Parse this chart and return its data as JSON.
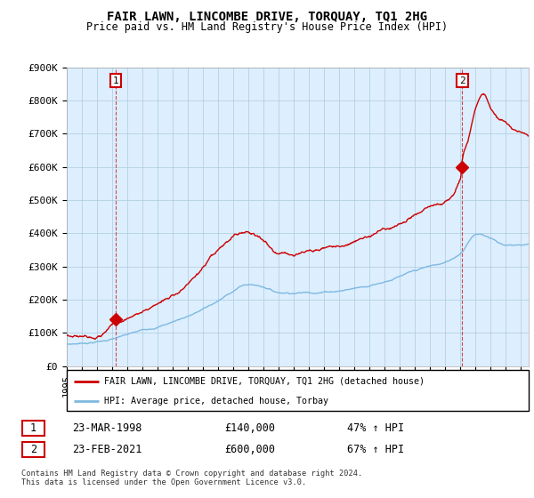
{
  "title": "FAIR LAWN, LINCOMBE DRIVE, TORQUAY, TQ1 2HG",
  "subtitle": "Price paid vs. HM Land Registry's House Price Index (HPI)",
  "ylabel_ticks": [
    "£0",
    "£100K",
    "£200K",
    "£300K",
    "£400K",
    "£500K",
    "£600K",
    "£700K",
    "£800K",
    "£900K"
  ],
  "ylim": [
    0,
    900000
  ],
  "xlim_start": 1995.0,
  "xlim_end": 2025.5,
  "hpi_color": "#7fb9e0",
  "price_color": "#cc0000",
  "bg_color": "#ddeeff",
  "legend_label_red": "FAIR LAWN, LINCOMBE DRIVE, TORQUAY, TQ1 2HG (detached house)",
  "legend_label_blue": "HPI: Average price, detached house, Torbay",
  "sale1_x": 1998.22,
  "sale1_y": 140000,
  "sale2_x": 2021.12,
  "sale2_y": 600000,
  "footnote": "Contains HM Land Registry data © Crown copyright and database right 2024.\nThis data is licensed under the Open Government Licence v3.0.",
  "table_row1": [
    "1",
    "23-MAR-1998",
    "£140,000",
    "47% ↑ HPI"
  ],
  "table_row2": [
    "2",
    "23-FEB-2021",
    "£600,000",
    "67% ↑ HPI"
  ],
  "grid_color": "#aaccdd",
  "hpi_knots_x": [
    1995,
    1997,
    1999,
    2001,
    2003,
    2005,
    2007,
    2008,
    2009,
    2011,
    2013,
    2015,
    2017,
    2019,
    2020,
    2021,
    2022,
    2023,
    2024,
    2025.5
  ],
  "hpi_knots_y": [
    65000,
    75000,
    95000,
    120000,
    155000,
    200000,
    250000,
    245000,
    230000,
    235000,
    245000,
    265000,
    295000,
    320000,
    330000,
    360000,
    420000,
    410000,
    390000,
    395000
  ],
  "red_knots_x": [
    1995,
    1997,
    1998.22,
    1999,
    2001,
    2003,
    2005,
    2007,
    2008,
    2009,
    2011,
    2013,
    2015,
    2017,
    2019,
    2020,
    2021,
    2021.12,
    2021.5,
    2022,
    2022.5,
    2023,
    2023.5,
    2024,
    2024.5,
    2025,
    2025.5
  ],
  "red_knots_y": [
    90000,
    100000,
    140000,
    155000,
    200000,
    260000,
    340000,
    390000,
    370000,
    335000,
    345000,
    355000,
    390000,
    430000,
    465000,
    480000,
    540000,
    600000,
    660000,
    760000,
    800000,
    760000,
    730000,
    720000,
    700000,
    690000,
    680000
  ]
}
